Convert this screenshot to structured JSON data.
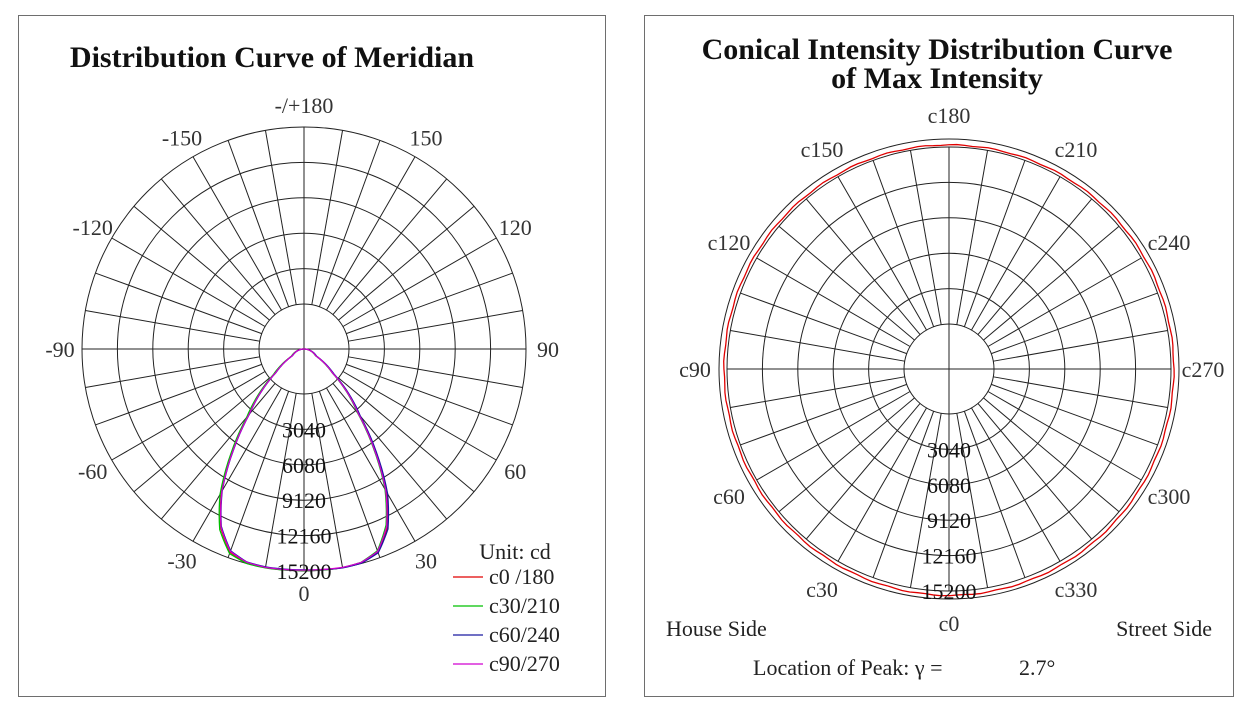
{
  "chart_data": [
    {
      "type": "polar",
      "title": "Distribution Curve of  Meridian",
      "unit_label": "Unit: cd",
      "radial_labels": [
        "3040",
        "6080",
        "9120",
        "12160",
        "15200"
      ],
      "radial_values": [
        3040,
        6080,
        9120,
        12160,
        15200
      ],
      "r_max": 15200,
      "angle_labels": [
        "0",
        "30",
        "60",
        "90",
        "120",
        "150",
        "-/+180",
        "-150",
        "-120",
        "-90",
        "-60",
        "-30"
      ],
      "grid": true,
      "legend_position": "bottom-right",
      "series": [
        {
          "name": "c0 /180",
          "color": "#e00000",
          "angles_deg": [
            -180,
            -90,
            -60,
            -50,
            -40,
            -35,
            -30,
            -25,
            -20,
            -15,
            -10,
            -5,
            0,
            5,
            10,
            15,
            20,
            25,
            30,
            35,
            40,
            50,
            60,
            90,
            180
          ],
          "values": [
            0,
            0,
            950,
            2600,
            5900,
            8500,
            11300,
            13500,
            14800,
            15150,
            15200,
            15170,
            15150,
            15170,
            15200,
            15150,
            14800,
            13500,
            11300,
            8500,
            5900,
            2600,
            950,
            0,
            0
          ]
        },
        {
          "name": "c30/210",
          "color": "#00c000",
          "angles_deg": [
            -180,
            -90,
            -60,
            -50,
            -40,
            -35,
            -30,
            -25,
            -20,
            -15,
            -10,
            -5,
            0,
            5,
            10,
            15,
            20,
            25,
            30,
            35,
            40,
            50,
            60,
            90,
            180
          ],
          "values": [
            0,
            0,
            1000,
            2750,
            6100,
            8700,
            11500,
            13650,
            14900,
            15200,
            15220,
            15190,
            15160,
            15180,
            15200,
            15120,
            14700,
            13300,
            11100,
            8300,
            5700,
            2500,
            900,
            0,
            0
          ]
        },
        {
          "name": "c60/240",
          "color": "#1a1aa0",
          "angles_deg": [
            -180,
            -90,
            -60,
            -50,
            -40,
            -35,
            -30,
            -25,
            -20,
            -15,
            -10,
            -5,
            0,
            5,
            10,
            15,
            20,
            25,
            30,
            35,
            40,
            50,
            60,
            90,
            180
          ],
          "values": [
            0,
            0,
            900,
            2500,
            5800,
            8400,
            11200,
            13400,
            14700,
            15100,
            15150,
            15130,
            15120,
            15160,
            15220,
            15180,
            14850,
            13600,
            11450,
            8650,
            6000,
            2700,
            1000,
            0,
            0
          ]
        },
        {
          "name": "c90/270",
          "color": "#d000d0",
          "angles_deg": [
            -180,
            -90,
            -60,
            -50,
            -40,
            -35,
            -30,
            -25,
            -20,
            -15,
            -10,
            -5,
            0,
            5,
            10,
            15,
            20,
            25,
            30,
            35,
            40,
            50,
            60,
            90,
            180
          ],
          "values": [
            0,
            0,
            920,
            2550,
            5850,
            8450,
            11250,
            13450,
            14750,
            15120,
            15180,
            15160,
            15140,
            15150,
            15180,
            15130,
            14750,
            13400,
            11200,
            8400,
            5800,
            2550,
            920,
            0,
            0
          ]
        }
      ]
    },
    {
      "type": "polar",
      "title_lines": [
        "Conical Intensity Distribution Curve",
        "of  Max Intensity"
      ],
      "radial_labels": [
        "3040",
        "6080",
        "9120",
        "12160",
        "15200"
      ],
      "radial_values": [
        3040,
        6080,
        9120,
        12160,
        15200
      ],
      "r_max": 15200,
      "angle_labels": [
        "c0",
        "c30",
        "c60",
        "c90",
        "c120",
        "c150",
        "c180",
        "c210",
        "c240",
        "c270",
        "c300",
        "c330"
      ],
      "grid": true,
      "series": [
        {
          "color": "#e00000",
          "c_angles_deg": [
            0,
            30,
            60,
            90,
            120,
            150,
            180,
            210,
            240,
            270,
            300,
            330,
            360
          ],
          "values": [
            15100,
            15020,
            14980,
            15000,
            14990,
            14960,
            14940,
            14970,
            15000,
            14990,
            15020,
            15060,
            15100
          ]
        }
      ],
      "house_side_label": "House Side",
      "street_side_label": "Street Side",
      "peak_label": "Location of  Peak:  γ  =",
      "peak_value": "2.7°",
      "peak_color": "#e00000"
    }
  ]
}
